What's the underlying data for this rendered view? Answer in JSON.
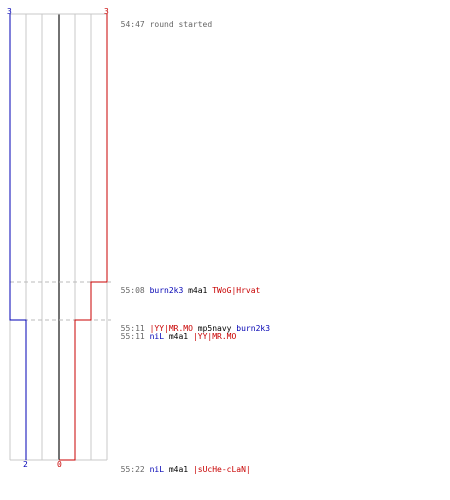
{
  "colors": {
    "blue_team": "#0000b4",
    "red_team": "#c80000",
    "grid": "#c8c8c8",
    "center_line": "#444444",
    "dashed": "#bbbbbb",
    "text": "#555555"
  },
  "scores": {
    "blue_start": "3",
    "red_start": "3",
    "blue_end": "2",
    "red_end": "0"
  },
  "events": [
    {
      "time": "54:47",
      "killer": "",
      "weapon": "",
      "victim": "",
      "message": "round started",
      "killer_team": "",
      "victim_team": "",
      "step": 0
    },
    {
      "time": "55:08",
      "killer": "burn2k3",
      "weapon": "m4a1",
      "victim": "TWoG|Hrvat",
      "message": "",
      "killer_team": "blue",
      "victim_team": "red",
      "step": 1
    },
    {
      "time": "55:11",
      "killer": "|YY|MR.MO",
      "weapon": "mp5navy",
      "victim": "burn2k3",
      "message": "",
      "killer_team": "red",
      "victim_team": "blue",
      "step": 2
    },
    {
      "time": "55:11",
      "killer": "niL",
      "weapon": "m4a1",
      "victim": "|YY|MR.MO",
      "message": "",
      "killer_team": "blue",
      "victim_team": "red",
      "step": 3
    },
    {
      "time": "55:22",
      "killer": "niL",
      "weapon": "m4a1",
      "victim": "|sUcHe-cLaN|",
      "message": "",
      "killer_team": "blue",
      "victim_team": "red",
      "step": 4
    }
  ]
}
